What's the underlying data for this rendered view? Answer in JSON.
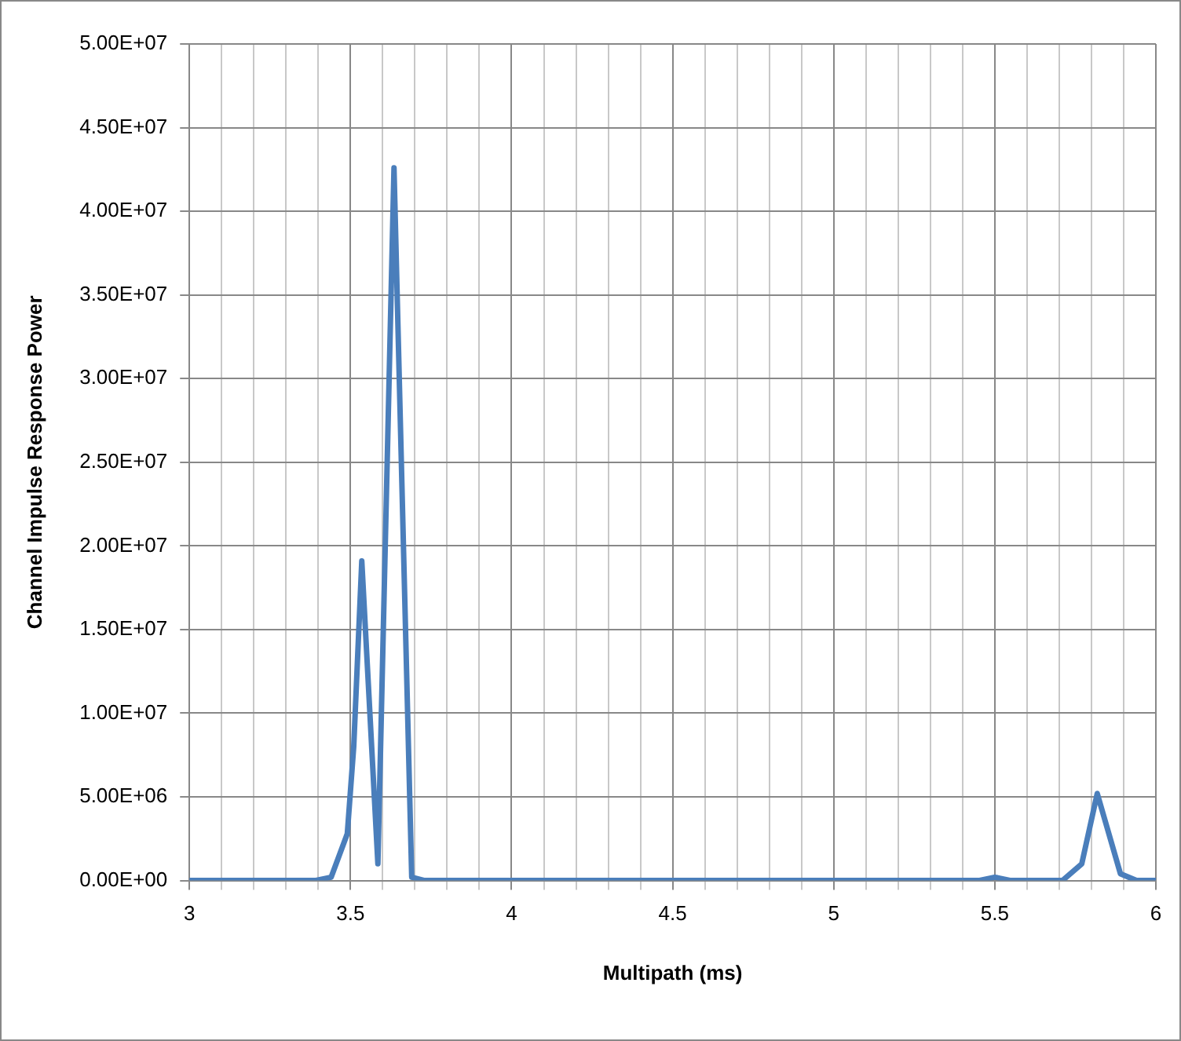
{
  "chart_data": {
    "type": "line",
    "xlabel": "Multipath (ms)",
    "ylabel": "Channel Impulse Response Power",
    "xlim": [
      3,
      6
    ],
    "xticks": [
      3,
      {
        "value": 3.1,
        "label": null
      },
      {
        "value": 3.2,
        "label": null
      },
      {
        "value": 3.3,
        "label": null
      },
      {
        "value": 3.4,
        "label": null
      },
      3.5,
      {
        "value": 3.6,
        "label": null
      },
      {
        "value": 3.7,
        "label": null
      },
      {
        "value": 3.8,
        "label": null
      },
      {
        "value": 3.9,
        "label": null
      },
      4,
      {
        "value": 4.1,
        "label": null
      },
      {
        "value": 4.2,
        "label": null
      },
      {
        "value": 4.3,
        "label": null
      },
      {
        "value": 4.4,
        "label": null
      },
      4.5,
      {
        "value": 4.6,
        "label": null
      },
      {
        "value": 4.7,
        "label": null
      },
      {
        "value": 4.8,
        "label": null
      },
      {
        "value": 4.9,
        "label": null
      },
      5,
      {
        "value": 5.1,
        "label": null
      },
      {
        "value": 5.2,
        "label": null
      },
      {
        "value": 5.3,
        "label": null
      },
      {
        "value": 5.4,
        "label": null
      },
      5.5,
      {
        "value": 5.6,
        "label": null
      },
      {
        "value": 5.7,
        "label": null
      },
      {
        "value": 5.8,
        "label": null
      },
      {
        "value": 5.9,
        "label": null
      },
      6
    ],
    "ylim": [
      0,
      50000000
    ],
    "yticks": [
      {
        "value": 0,
        "label": "0.00E+00"
      },
      {
        "value": 5000000,
        "label": "5.00E+06"
      },
      {
        "value": 10000000,
        "label": "1.00E+07"
      },
      {
        "value": 15000000,
        "label": "1.50E+07"
      },
      {
        "value": 20000000,
        "label": "2.00E+07"
      },
      {
        "value": 25000000,
        "label": "2.50E+07"
      },
      {
        "value": 30000000,
        "label": "3.00E+07"
      },
      {
        "value": 35000000,
        "label": "3.50E+07"
      },
      {
        "value": 40000000,
        "label": "4.00E+07"
      },
      {
        "value": 45000000,
        "label": "4.50E+07"
      },
      {
        "value": 50000000,
        "label": "5.00E+07"
      }
    ],
    "grid": true,
    "legend": false,
    "marker": "none",
    "line_style": "solid",
    "series": [
      {
        "color": "#4a7ebb",
        "x": [
          3,
          3.39,
          3.44,
          3.49,
          3.51,
          3.535,
          3.585,
          3.635,
          3.69,
          3.73,
          5.45,
          5.5,
          5.55,
          5.71,
          5.77,
          5.818,
          5.89,
          5.94,
          6
        ],
        "values": [
          0,
          0,
          200000,
          2800000,
          8000000,
          19100000,
          1000000,
          42600000,
          200000,
          0,
          0,
          200000,
          0,
          0,
          1000000,
          5200000,
          400000,
          0,
          0
        ]
      }
    ]
  }
}
